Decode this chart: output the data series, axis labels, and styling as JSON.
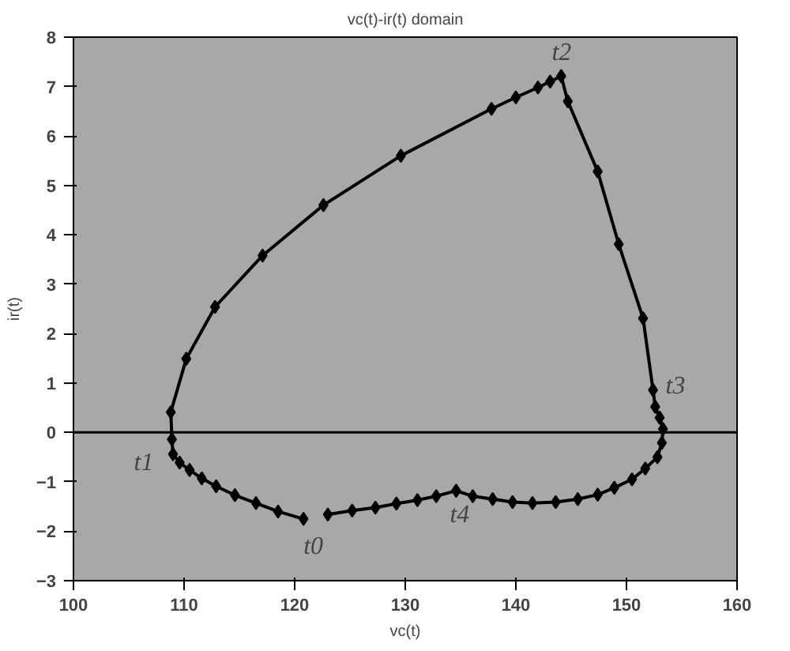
{
  "chart_data": {
    "type": "line",
    "title": "vc(t)-ir(t) domain",
    "xlabel": "vc(t)",
    "ylabel": "ir(t)",
    "xlim": [
      100,
      160
    ],
    "xticks": [
      100,
      110,
      120,
      130,
      140,
      150,
      160
    ],
    "ylim": [
      -3,
      8
    ],
    "yticks": [
      -3,
      -2,
      -1,
      0,
      1,
      2,
      3,
      4,
      5,
      6,
      7,
      8
    ],
    "grid": false,
    "marker": "diamond",
    "line_style": "solid",
    "ref_lines": [
      {
        "axis": "y",
        "value": 0,
        "color": "#000000"
      }
    ],
    "x": [
      120.8,
      118.5,
      116.5,
      114.6,
      112.9,
      111.6,
      110.5,
      109.6,
      109.0,
      108.9,
      108.8,
      110.2,
      112.8,
      117.1,
      122.6,
      129.6,
      137.8,
      140.0,
      142.0,
      143.1,
      144.1,
      144.7,
      147.4,
      149.3,
      151.5,
      152.4,
      152.6,
      153.0,
      153.3,
      153.2,
      152.8,
      151.7,
      150.5,
      148.9,
      147.4,
      145.6,
      143.6,
      141.5,
      139.7,
      137.9,
      136.1,
      134.6,
      132.8,
      131.1,
      129.2,
      127.3,
      125.2,
      123.0
    ],
    "series": [
      {
        "color": "#000000",
        "values": [
          -1.75,
          -1.6,
          -1.43,
          -1.27,
          -1.09,
          -0.93,
          -0.76,
          -0.61,
          -0.44,
          -0.14,
          0.41,
          1.49,
          2.54,
          3.58,
          4.6,
          5.6,
          6.55,
          6.78,
          6.98,
          7.1,
          7.21,
          6.7,
          5.28,
          3.81,
          2.31,
          0.86,
          0.52,
          0.3,
          0.07,
          -0.21,
          -0.5,
          -0.73,
          -0.95,
          -1.12,
          -1.26,
          -1.35,
          -1.41,
          -1.43,
          -1.41,
          -1.35,
          -1.29,
          -1.18,
          -1.29,
          -1.37,
          -1.44,
          -1.52,
          -1.58,
          -1.66
        ]
      }
    ],
    "annotations": [
      {
        "text": "t0",
        "x": 120.8,
        "y": -1.75
      },
      {
        "text": "t1",
        "x": 108.9,
        "y": -0.44
      },
      {
        "text": "t2",
        "x": 144.1,
        "y": 7.21
      },
      {
        "text": "t3",
        "x": 152.4,
        "y": 0.86
      },
      {
        "text": "t4",
        "x": 134.6,
        "y": -1.18
      }
    ]
  }
}
